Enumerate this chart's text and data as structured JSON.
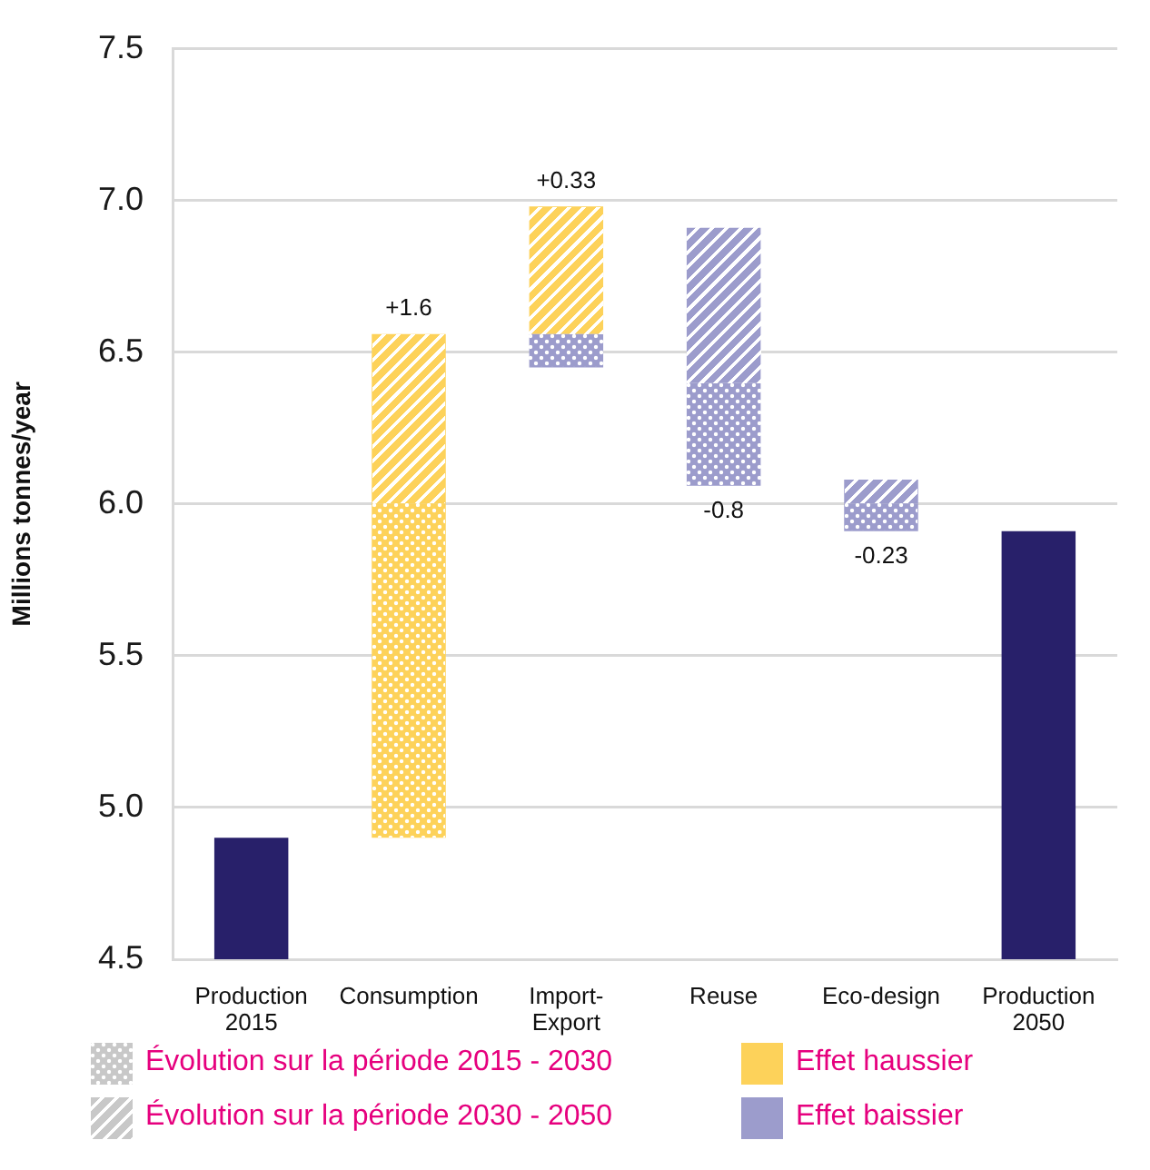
{
  "chart_data": {
    "type": "bar",
    "categories": [
      "Production 2015",
      "Consumption",
      "Import-Export",
      "Reuse",
      "Eco-design",
      "Production 2050"
    ],
    "ylabel": "Millions tonnes/year",
    "ylim": [
      4.5,
      7.5
    ],
    "yticks": [
      4.5,
      {
        "value": 5,
        "label": "5.0"
      },
      5.5,
      {
        "value": 6,
        "label": "6.0"
      },
      6.5,
      {
        "value": 7,
        "label": "7.0"
      },
      7.5
    ],
    "grid": "y",
    "legend": "bottom",
    "series": [
      {
        "name": "Évolution sur la période 2015 - 2030",
        "color": "#c8c8c8",
        "values": [
          null,
          1.1,
          -0.11,
          -0.34,
          -0.09,
          null
        ],
        "base": [
          null,
          4.9,
          6.56,
          6.4,
          6.0,
          null
        ],
        "colors": [
          null,
          "#fdd25a",
          "#9c9ccc",
          "#9c9ccc",
          "#9c9ccc",
          null
        ]
      },
      {
        "name": "Évolution sur la période 2030 - 2050",
        "color": "#c8c8c8",
        "values": [
          null,
          0.56,
          0.42,
          -0.51,
          -0.08,
          null
        ],
        "base": [
          null,
          6.0,
          6.56,
          6.91,
          6.08,
          null
        ],
        "colors": [
          null,
          "#fdd25a",
          "#fdd25a",
          "#9c9ccc",
          "#9c9ccc",
          null
        ]
      },
      {
        "name": "Effet haussier",
        "color": "#fdd25a",
        "values": [
          null,
          null,
          null,
          null,
          null,
          null
        ]
      },
      {
        "name": "Effet baissier",
        "color": "#9c9ccc",
        "values": [
          null,
          null,
          null,
          null,
          null,
          null
        ]
      },
      {
        "color": "#28206a",
        "values": [
          4.9,
          null,
          null,
          null,
          null,
          5.91
        ]
      }
    ],
    "annotations": [
      {
        "text": "+1.6",
        "x": "Consumption",
        "y": 6.56
      },
      {
        "text": "+0.33",
        "x": "Import-Export",
        "y": 6.98
      },
      {
        "text": "-0.8",
        "x": "Reuse",
        "y": 6.06
      },
      {
        "text": "-0.23",
        "x": "Eco-design",
        "y": 5.91
      }
    ]
  }
}
